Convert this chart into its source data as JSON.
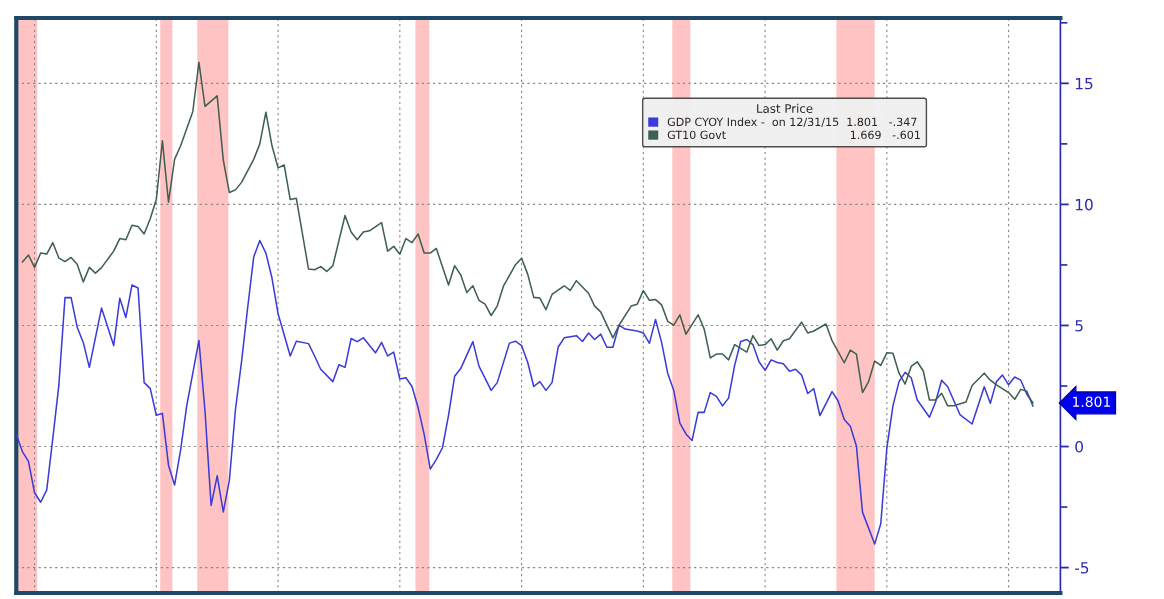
{
  "chart_data": {
    "type": "line",
    "categories": [
      null,
      null,
      null,
      null,
      null,
      null,
      null,
      null,
      null,
      null,
      null,
      null,
      null,
      null,
      null,
      null,
      null,
      null,
      null,
      null,
      null,
      null,
      null,
      null,
      null,
      null,
      null,
      null,
      null,
      null,
      null,
      null,
      null,
      null,
      null,
      null,
      null,
      null,
      null,
      null,
      null,
      null,
      null,
      null,
      null,
      null,
      null,
      null,
      null,
      null,
      null,
      null,
      null,
      null,
      null,
      null,
      null,
      null,
      null,
      null,
      null,
      null,
      null,
      null,
      null,
      null,
      null,
      null,
      null,
      null,
      null,
      null,
      null,
      null,
      null,
      null,
      null,
      null,
      null,
      null,
      null,
      null,
      null,
      null,
      null,
      null,
      null,
      null,
      null,
      null,
      null,
      null,
      null,
      null,
      null,
      null,
      null,
      null,
      null,
      null,
      null,
      null,
      null,
      null,
      null,
      null,
      null,
      null,
      null,
      null,
      null,
      null,
      null,
      null,
      null,
      null,
      null,
      null,
      null,
      null,
      null,
      null,
      null,
      null,
      null,
      null,
      null,
      null,
      null,
      null,
      null,
      null,
      null,
      null,
      null,
      null,
      null,
      null,
      null,
      null,
      null,
      null,
      null,
      null,
      null,
      null,
      null,
      null,
      null,
      null,
      null,
      null,
      null,
      null,
      null,
      null,
      null,
      null,
      null,
      null,
      null,
      null,
      null,
      null,
      null,
      null,
      null,
      null
    ],
    "ylim": [
      -6.05,
      17.7
    ],
    "yticks": [
      -5,
      0,
      5,
      10,
      15
    ],
    "tick_labels": "y",
    "grid": true,
    "legend": "top right",
    "legend_title": "Last Price",
    "line_style": "solid",
    "series": [
      {
        "name": "GDP CYOY Index -  on 12/31/15  1.801   -.347",
        "color": "#3b3bd9",
        "values": [
          0.5,
          -0.21,
          -0.61,
          -1.91,
          -2.3,
          -1.79,
          0.34,
          2.56,
          6.15,
          6.15,
          4.93,
          4.3,
          3.27,
          null,
          5.72,
          null,
          4.17,
          6.12,
          5.33,
          6.67,
          6.55,
          2.64,
          2.4,
          1.29,
          1.37,
          -0.77,
          -1.59,
          -0.13,
          1.69,
          null,
          4.38,
          1.45,
          -2.43,
          -1.21,
          -2.7,
          -1.4,
          1.53,
          3.51,
          5.72,
          7.83,
          8.51,
          7.99,
          6.96,
          5.49,
          4.62,
          3.74,
          4.35,
          null,
          4.25,
          3.74,
          3.19,
          null,
          2.68,
          3.38,
          3.27,
          4.46,
          4.33,
          4.49,
          null,
          3.87,
          4.3,
          3.74,
          3.9,
          2.79,
          2.84,
          2.48,
          1.61,
          0.5,
          -0.93,
          -0.53,
          -0.05,
          1.29,
          2.9,
          3.22,
          null,
          4.33,
          3.32,
          null,
          2.32,
          2.64,
          null,
          4.27,
          4.35,
          4.17,
          3.48,
          2.48,
          2.68,
          2.32,
          2.64,
          4.1,
          4.49,
          null,
          4.58,
          4.34,
          4.69,
          4.42,
          4.64,
          4.1,
          4.1,
          5.01,
          4.85,
          null,
          4.77,
          4.69,
          4.26,
          5.25,
          4.3,
          3.03,
          2.31,
          0.97,
          0.52,
          0.25,
          1.41,
          1.41,
          2.23,
          2.07,
          1.68,
          2.0,
          3.35,
          4.34,
          4.42,
          4.21,
          3.5,
          3.15,
          3.58,
          3.47,
          3.42,
          3.11,
          3.19,
          2.95,
          2.19,
          2.39,
          1.28,
          null,
          2.27,
          1.88,
          1.12,
          0.84,
          0.02,
          -2.71,
          null,
          -4.03,
          -3.19,
          -0.07,
          1.68,
          2.68,
          3.06,
          2.84,
          1.92,
          null,
          1.21,
          1.84,
          2.74,
          2.47,
          null,
          1.32,
          null,
          0.93,
          null,
          2.47,
          1.79,
          2.68,
          2.95,
          2.55,
          2.87,
          2.74,
          2.16,
          1.8
        ]
      },
      {
        "name": "GT10 Govt                                   1.669   -.601",
        "color": "#3f5f50",
        "values": [
          null,
          7.62,
          7.91,
          7.4,
          7.99,
          7.95,
          8.42,
          7.78,
          7.64,
          7.81,
          7.53,
          6.8,
          7.4,
          7.16,
          7.39,
          null,
          8.07,
          8.59,
          8.54,
          9.14,
          9.09,
          8.78,
          9.41,
          10.2,
          12.63,
          10.09,
          11.86,
          12.42,
          null,
          13.84,
          15.87,
          14.05,
          null,
          14.48,
          11.83,
          10.49,
          10.6,
          10.91,
          null,
          11.86,
          12.5,
          13.81,
          12.42,
          11.51,
          11.63,
          10.2,
          10.25,
          null,
          7.33,
          7.3,
          7.43,
          7.23,
          7.47,
          null,
          9.54,
          8.86,
          8.54,
          8.86,
          8.91,
          null,
          9.25,
          8.07,
          8.27,
          7.94,
          8.59,
          8.42,
          8.78,
          7.99,
          7.99,
          8.18,
          null,
          6.67,
          7.47,
          7.09,
          6.36,
          6.64,
          6.04,
          5.88,
          5.41,
          5.8,
          6.61,
          null,
          7.51,
          7.78,
          7.12,
          6.16,
          6.13,
          5.65,
          6.28,
          null,
          6.64,
          6.45,
          6.85,
          null,
          6.33,
          5.8,
          5.56,
          null,
          4.49,
          5.01,
          null,
          5.8,
          5.88,
          6.44,
          6.04,
          6.07,
          5.85,
          5.17,
          5.01,
          5.44,
          4.64,
          null,
          5.44,
          4.85,
          3.66,
          3.82,
          3.82,
          3.58,
          4.21,
          null,
          3.9,
          4.58,
          4.17,
          4.21,
          4.45,
          3.98,
          4.37,
          4.45,
          null,
          5.14,
          4.69,
          4.77,
          null,
          5.06,
          4.37,
          null,
          3.46,
          3.98,
          3.82,
          2.23,
          2.68,
          3.53,
          3.35,
          3.87,
          3.85,
          3.03,
          2.58,
          3.31,
          3.5,
          3.11,
          1.92,
          1.92,
          2.2,
          1.68,
          1.68,
          null,
          1.84,
          2.52,
          null,
          3.03,
          2.74,
          2.55,
          null,
          2.23,
          1.95,
          2.36,
          2.28,
          1.67
        ]
      }
    ],
    "annotations": [
      "1.801"
    ]
  }
}
